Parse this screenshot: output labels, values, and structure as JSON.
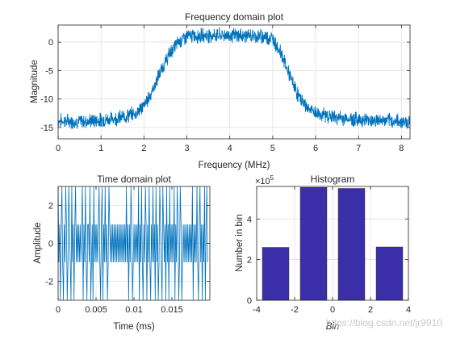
{
  "colors": {
    "line": "#0072BD",
    "bar": "#3A2FA8",
    "grid": "#DEDEDE",
    "axis": "#262626",
    "background": "#FFFFFF"
  },
  "chart_data": [
    {
      "type": "line",
      "title": "Frequency domain plot",
      "xlabel": "Frequency (MHz)",
      "ylabel": "Magnitude",
      "xlim": [
        0,
        8.2
      ],
      "ylim": [
        -17,
        3
      ],
      "xticks": [
        0,
        1,
        2,
        3,
        4,
        5,
        6,
        7,
        8
      ],
      "xtick_labels": [
        "0",
        "1",
        "2",
        "3",
        "4",
        "5",
        "6",
        "7",
        "8"
      ],
      "yticks": [
        0,
        -5,
        -10,
        -15
      ],
      "ytick_labels": [
        "0",
        "-5",
        "-10",
        "-15"
      ],
      "grid": true,
      "series": [
        {
          "x": [
            0,
            0.5,
            1.0,
            1.5,
            1.8,
            2.0,
            2.2,
            2.4,
            2.6,
            2.8,
            3.0,
            3.5,
            4.0,
            4.5,
            4.8,
            5.0,
            5.2,
            5.4,
            5.6,
            5.8,
            6.0,
            6.5,
            7.0,
            7.5,
            8.2
          ],
          "y": [
            -13.8,
            -14.0,
            -13.7,
            -13.2,
            -12.5,
            -11.2,
            -8.5,
            -5.0,
            -2.0,
            0.0,
            1.0,
            1.2,
            1.2,
            1.1,
            1.0,
            0.6,
            -2.0,
            -6.0,
            -9.5,
            -11.5,
            -12.5,
            -13.3,
            -13.6,
            -13.8,
            -14.0
          ]
        }
      ]
    },
    {
      "type": "line",
      "title": "Time domain plot",
      "xlabel": "Time (ms)",
      "ylabel": "Amplitude",
      "xlim": [
        0,
        0.02
      ],
      "ylim": [
        -3,
        3
      ],
      "xticks": [
        0,
        0.005,
        0.01,
        0.015
      ],
      "xtick_labels": [
        "0",
        "0.005",
        "0.01",
        "0.015"
      ],
      "yticks": [
        2,
        0,
        -2
      ],
      "ytick_labels": [
        "2",
        "0",
        "-2"
      ],
      "grid": true,
      "series": [
        {
          "levels": [
            -3,
            -1,
            1,
            3
          ],
          "samples_per_ms": 10000,
          "values": [
            3,
            -1,
            1,
            -3,
            1,
            3,
            -1,
            -3,
            1,
            -1,
            3,
            1,
            -3,
            -1,
            3,
            1,
            -1,
            -3,
            3,
            -1,
            1,
            -3,
            1,
            3,
            -1,
            1,
            -1,
            1,
            -1,
            1,
            -1,
            1,
            3,
            -3,
            1,
            -1,
            3,
            -1,
            -3,
            1,
            1,
            -1,
            3,
            -3,
            -1,
            1,
            -3,
            3,
            -1,
            1,
            -1,
            1,
            -1,
            1,
            3,
            -1,
            -3,
            1,
            3,
            -3,
            1,
            -1,
            3,
            -1,
            1,
            -3,
            -1,
            3,
            1,
            -1,
            1,
            -1,
            1,
            -1,
            1,
            -1,
            1,
            -1,
            1,
            -1,
            1,
            -1,
            1,
            -1,
            1,
            -1,
            1,
            -1,
            1,
            -1,
            3,
            -1,
            1,
            -3,
            1,
            -1,
            3,
            1,
            -3,
            -1,
            1,
            -1,
            1,
            -1,
            1,
            -1,
            3,
            -3,
            1,
            -1,
            3,
            -1,
            -3,
            1,
            -1,
            3,
            1,
            -3,
            1,
            -1,
            3,
            -1,
            -3,
            1,
            -1,
            3,
            -1,
            1,
            -3,
            3,
            -1,
            1,
            -3,
            -1,
            3,
            1,
            -1,
            -3,
            3,
            1,
            -1,
            1,
            -3,
            3,
            -1,
            1,
            -3,
            3,
            -1,
            1,
            -1,
            1,
            -1,
            3,
            -3,
            1,
            -1,
            3,
            1,
            -3,
            -1,
            3,
            1,
            -3,
            -1,
            1,
            -1,
            1,
            -1,
            1,
            -1,
            1,
            -1,
            1,
            -1,
            1,
            -1,
            3,
            -3,
            1,
            -1,
            1,
            -1,
            3,
            -1,
            -3,
            1,
            3,
            -1,
            1,
            -3,
            1,
            -1,
            3,
            -3,
            1,
            3,
            -1
          ]
        }
      ]
    },
    {
      "type": "bar",
      "title": "Histogram",
      "xlabel": "Bin",
      "ylabel": "Number in bin",
      "exponent_label": "×10",
      "exponent": "5",
      "categories": [
        -3,
        -1,
        1,
        3
      ],
      "values": [
        260000,
        555000,
        550000,
        262000
      ],
      "bar_width": 1.4,
      "xlim": [
        -4,
        4
      ],
      "ylim": [
        0,
        560000
      ],
      "xticks": [
        -4,
        -2,
        0,
        2,
        4
      ],
      "xtick_labels": [
        "-4",
        "-2",
        "0",
        "2",
        "4"
      ],
      "yticks": [
        0,
        200000,
        400000
      ],
      "ytick_labels": [
        "0",
        "2",
        "4"
      ],
      "grid": true
    }
  ],
  "watermark": "https://blog.csdn.net/jr9910"
}
